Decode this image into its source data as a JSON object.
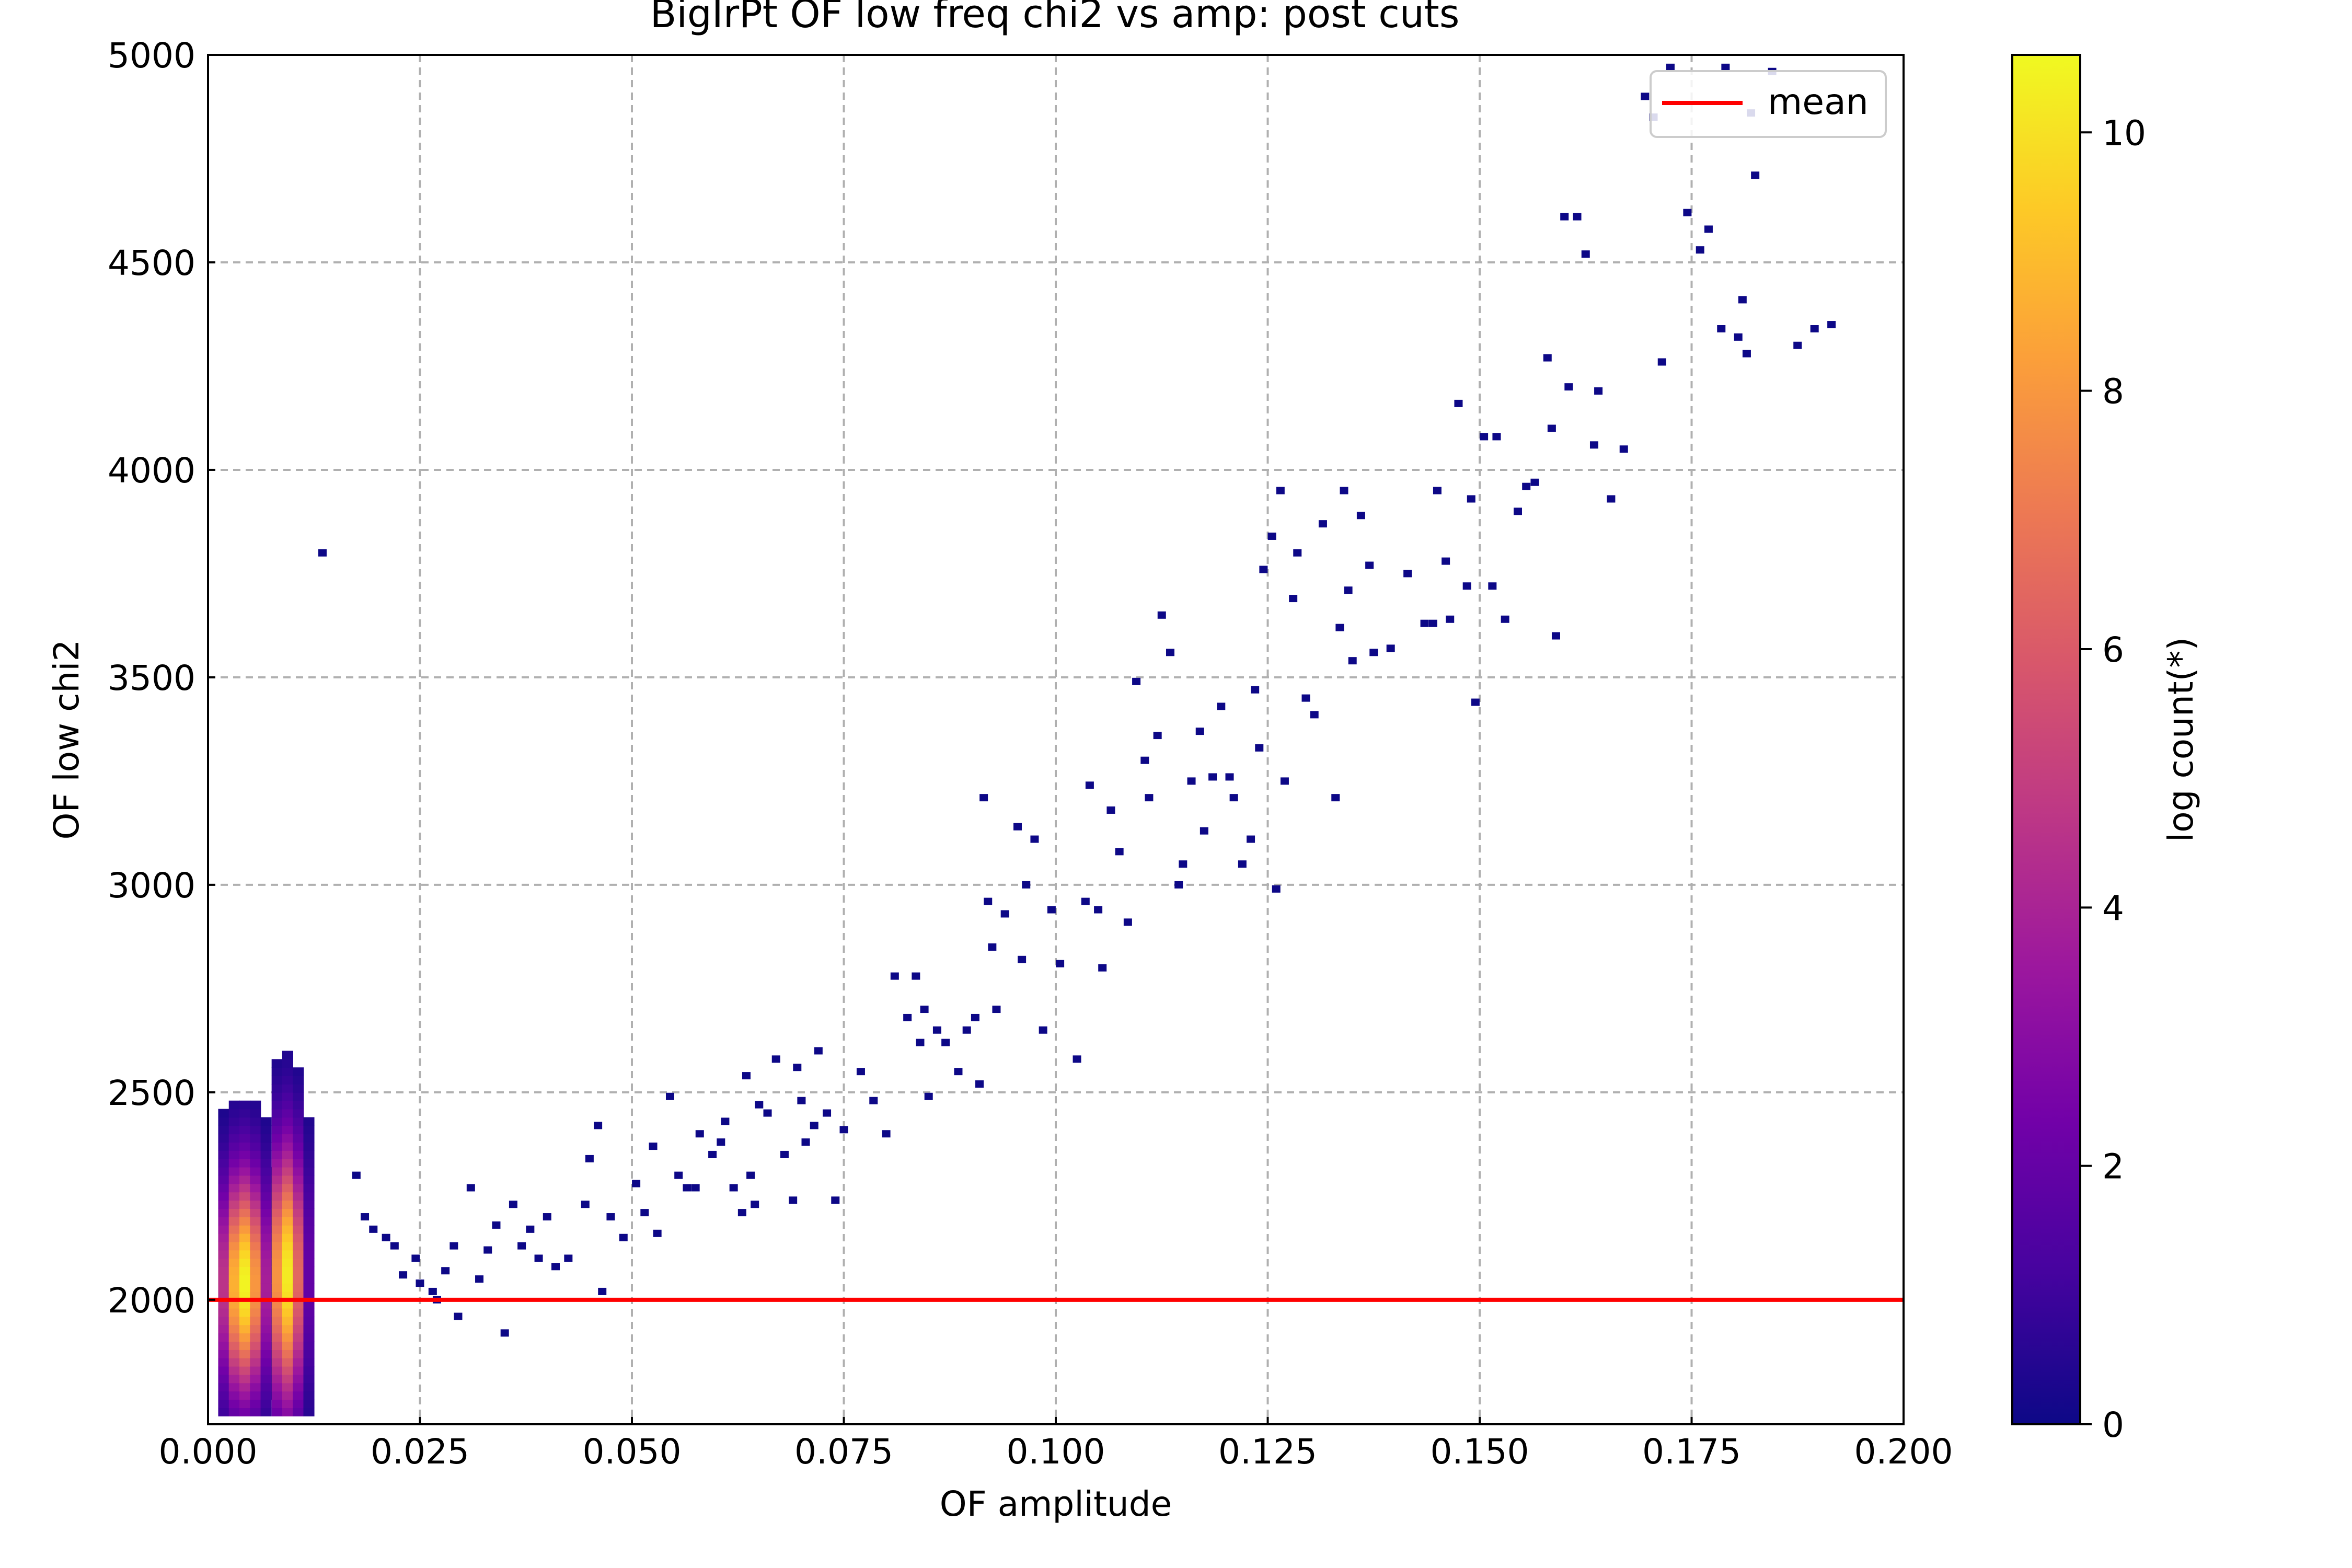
{
  "chart_data": {
    "type": "heatmap",
    "title": "BigIrPt OF low freq chi2 vs amp: post cuts",
    "xlabel": "OF amplitude",
    "ylabel": "OF low chi2",
    "xlim": [
      0.0,
      0.2
    ],
    "ylim": [
      1700,
      5000
    ],
    "grid": true,
    "x_ticks": [
      0.0,
      0.025,
      0.05,
      0.075,
      0.1,
      0.125,
      0.15,
      0.175,
      0.2
    ],
    "x_tick_labels": [
      "0.000",
      "0.025",
      "0.050",
      "0.075",
      "0.100",
      "0.125",
      "0.150",
      "0.175",
      "0.200"
    ],
    "y_ticks": [
      2000,
      2500,
      3000,
      3500,
      4000,
      4500,
      5000
    ],
    "y_tick_labels": [
      "2000",
      "2500",
      "3000",
      "3500",
      "4000",
      "4500",
      "5000"
    ],
    "mean_line": {
      "label": "mean",
      "y": 2000,
      "color": "#ff0000"
    },
    "legend": {
      "position": "top-right",
      "entries": [
        "mean"
      ]
    },
    "colorbar": {
      "label": "log count(*)",
      "range": [
        0,
        10.6
      ],
      "ticks": [
        0,
        2,
        4,
        6,
        8,
        10
      ],
      "tick_labels": [
        "0",
        "2",
        "4",
        "6",
        "8",
        "10"
      ],
      "colors": [
        "#0d0887",
        "#46039f",
        "#7201a8",
        "#9c179e",
        "#bd3786",
        "#d8576b",
        "#ed7953",
        "#fb9f3a",
        "#fdca26",
        "#f0f921"
      ]
    },
    "dense_clusters": [
      {
        "x_center": 0.0042,
        "y_center": 2040,
        "x_range": [
          0.0012,
          0.0075
        ],
        "y_range": [
          1720,
          2480
        ],
        "peak_log_count": 10.5
      },
      {
        "x_center": 0.0092,
        "y_center": 2060,
        "x_range": [
          0.0075,
          0.0125
        ],
        "y_range": [
          1720,
          2600
        ],
        "peak_log_count": 10.3
      }
    ],
    "sparse_points": [
      [
        0.0135,
        3800
      ],
      [
        0.0175,
        2300
      ],
      [
        0.0185,
        2200
      ],
      [
        0.0195,
        2170
      ],
      [
        0.021,
        2150
      ],
      [
        0.022,
        2130
      ],
      [
        0.023,
        2060
      ],
      [
        0.0245,
        2100
      ],
      [
        0.025,
        2040
      ],
      [
        0.0265,
        2020
      ],
      [
        0.027,
        2000
      ],
      [
        0.028,
        2070
      ],
      [
        0.029,
        2130
      ],
      [
        0.0295,
        1960
      ],
      [
        0.031,
        2270
      ],
      [
        0.032,
        2050
      ],
      [
        0.033,
        2120
      ],
      [
        0.034,
        2180
      ],
      [
        0.035,
        1920
      ],
      [
        0.036,
        2230
      ],
      [
        0.037,
        2130
      ],
      [
        0.038,
        2170
      ],
      [
        0.039,
        2100
      ],
      [
        0.04,
        2200
      ],
      [
        0.041,
        2080
      ],
      [
        0.0425,
        2100
      ],
      [
        0.0445,
        2230
      ],
      [
        0.045,
        2340
      ],
      [
        0.046,
        2420
      ],
      [
        0.0465,
        2020
      ],
      [
        0.0475,
        2200
      ],
      [
        0.049,
        2150
      ],
      [
        0.0505,
        2280
      ],
      [
        0.0515,
        2210
      ],
      [
        0.0525,
        2370
      ],
      [
        0.053,
        2160
      ],
      [
        0.0545,
        2490
      ],
      [
        0.0555,
        2300
      ],
      [
        0.0565,
        2270
      ],
      [
        0.0575,
        2270
      ],
      [
        0.058,
        2400
      ],
      [
        0.0595,
        2350
      ],
      [
        0.0605,
        2380
      ],
      [
        0.061,
        2430
      ],
      [
        0.062,
        2270
      ],
      [
        0.063,
        2210
      ],
      [
        0.0635,
        2540
      ],
      [
        0.064,
        2300
      ],
      [
        0.0645,
        2230
      ],
      [
        0.065,
        2470
      ],
      [
        0.066,
        2450
      ],
      [
        0.067,
        2580
      ],
      [
        0.068,
        2350
      ],
      [
        0.069,
        2240
      ],
      [
        0.0695,
        2560
      ],
      [
        0.07,
        2480
      ],
      [
        0.0705,
        2380
      ],
      [
        0.0715,
        2420
      ],
      [
        0.072,
        2600
      ],
      [
        0.073,
        2450
      ],
      [
        0.074,
        2240
      ],
      [
        0.075,
        2410
      ],
      [
        0.077,
        2550
      ],
      [
        0.0785,
        2480
      ],
      [
        0.08,
        2400
      ],
      [
        0.081,
        2780
      ],
      [
        0.0825,
        2680
      ],
      [
        0.0835,
        2780
      ],
      [
        0.084,
        2620
      ],
      [
        0.0845,
        2700
      ],
      [
        0.085,
        2490
      ],
      [
        0.086,
        2650
      ],
      [
        0.087,
        2620
      ],
      [
        0.0885,
        2550
      ],
      [
        0.0895,
        2650
      ],
      [
        0.0905,
        2680
      ],
      [
        0.091,
        2520
      ],
      [
        0.0915,
        3210
      ],
      [
        0.092,
        2960
      ],
      [
        0.0925,
        2850
      ],
      [
        0.093,
        2700
      ],
      [
        0.094,
        2930
      ],
      [
        0.0955,
        3140
      ],
      [
        0.096,
        2820
      ],
      [
        0.0965,
        3000
      ],
      [
        0.0975,
        3110
      ],
      [
        0.0985,
        2650
      ],
      [
        0.0995,
        2940
      ],
      [
        0.1005,
        2810
      ],
      [
        0.1025,
        2580
      ],
      [
        0.1035,
        2960
      ],
      [
        0.104,
        3240
      ],
      [
        0.105,
        2940
      ],
      [
        0.1055,
        2800
      ],
      [
        0.1065,
        3180
      ],
      [
        0.1075,
        3080
      ],
      [
        0.1085,
        2910
      ],
      [
        0.1095,
        3490
      ],
      [
        0.1105,
        3300
      ],
      [
        0.111,
        3210
      ],
      [
        0.112,
        3360
      ],
      [
        0.1125,
        3650
      ],
      [
        0.1135,
        3560
      ],
      [
        0.1145,
        3000
      ],
      [
        0.115,
        3050
      ],
      [
        0.116,
        3250
      ],
      [
        0.117,
        3370
      ],
      [
        0.1175,
        3130
      ],
      [
        0.1185,
        3260
      ],
      [
        0.1195,
        3430
      ],
      [
        0.1205,
        3260
      ],
      [
        0.121,
        3210
      ],
      [
        0.122,
        3050
      ],
      [
        0.123,
        3110
      ],
      [
        0.1235,
        3470
      ],
      [
        0.124,
        3330
      ],
      [
        0.1245,
        3760
      ],
      [
        0.1255,
        3840
      ],
      [
        0.126,
        2990
      ],
      [
        0.1265,
        3950
      ],
      [
        0.127,
        3250
      ],
      [
        0.128,
        3690
      ],
      [
        0.1285,
        3800
      ],
      [
        0.1295,
        3450
      ],
      [
        0.1305,
        3410
      ],
      [
        0.1315,
        3870
      ],
      [
        0.133,
        3210
      ],
      [
        0.1335,
        3620
      ],
      [
        0.134,
        3950
      ],
      [
        0.1345,
        3710
      ],
      [
        0.135,
        3540
      ],
      [
        0.136,
        3890
      ],
      [
        0.137,
        3770
      ],
      [
        0.1375,
        3560
      ],
      [
        0.1395,
        3570
      ],
      [
        0.1415,
        3750
      ],
      [
        0.1435,
        3630
      ],
      [
        0.1445,
        3630
      ],
      [
        0.145,
        3950
      ],
      [
        0.146,
        3780
      ],
      [
        0.1465,
        3640
      ],
      [
        0.1475,
        4160
      ],
      [
        0.1485,
        3720
      ],
      [
        0.149,
        3930
      ],
      [
        0.1495,
        3440
      ],
      [
        0.1505,
        4080
      ],
      [
        0.1515,
        3720
      ],
      [
        0.152,
        4080
      ],
      [
        0.153,
        3640
      ],
      [
        0.1545,
        3900
      ],
      [
        0.1555,
        3960
      ],
      [
        0.1565,
        3970
      ],
      [
        0.158,
        4270
      ],
      [
        0.1585,
        4100
      ],
      [
        0.159,
        3600
      ],
      [
        0.16,
        4610
      ],
      [
        0.1605,
        4200
      ],
      [
        0.1615,
        4610
      ],
      [
        0.1625,
        4520
      ],
      [
        0.1635,
        4060
      ],
      [
        0.164,
        4190
      ],
      [
        0.1655,
        3930
      ],
      [
        0.167,
        4050
      ],
      [
        0.1695,
        4900
      ],
      [
        0.1705,
        4850
      ],
      [
        0.1715,
        4260
      ],
      [
        0.1725,
        4970
      ],
      [
        0.1745,
        4620
      ],
      [
        0.176,
        4530
      ],
      [
        0.177,
        4580
      ],
      [
        0.1785,
        4340
      ],
      [
        0.179,
        4970
      ],
      [
        0.1805,
        4320
      ],
      [
        0.181,
        4410
      ],
      [
        0.1815,
        4280
      ],
      [
        0.182,
        4860
      ],
      [
        0.1825,
        4710
      ],
      [
        0.1845,
        4960
      ],
      [
        0.1875,
        4300
      ],
      [
        0.1895,
        4340
      ],
      [
        0.1915,
        4350
      ]
    ]
  }
}
